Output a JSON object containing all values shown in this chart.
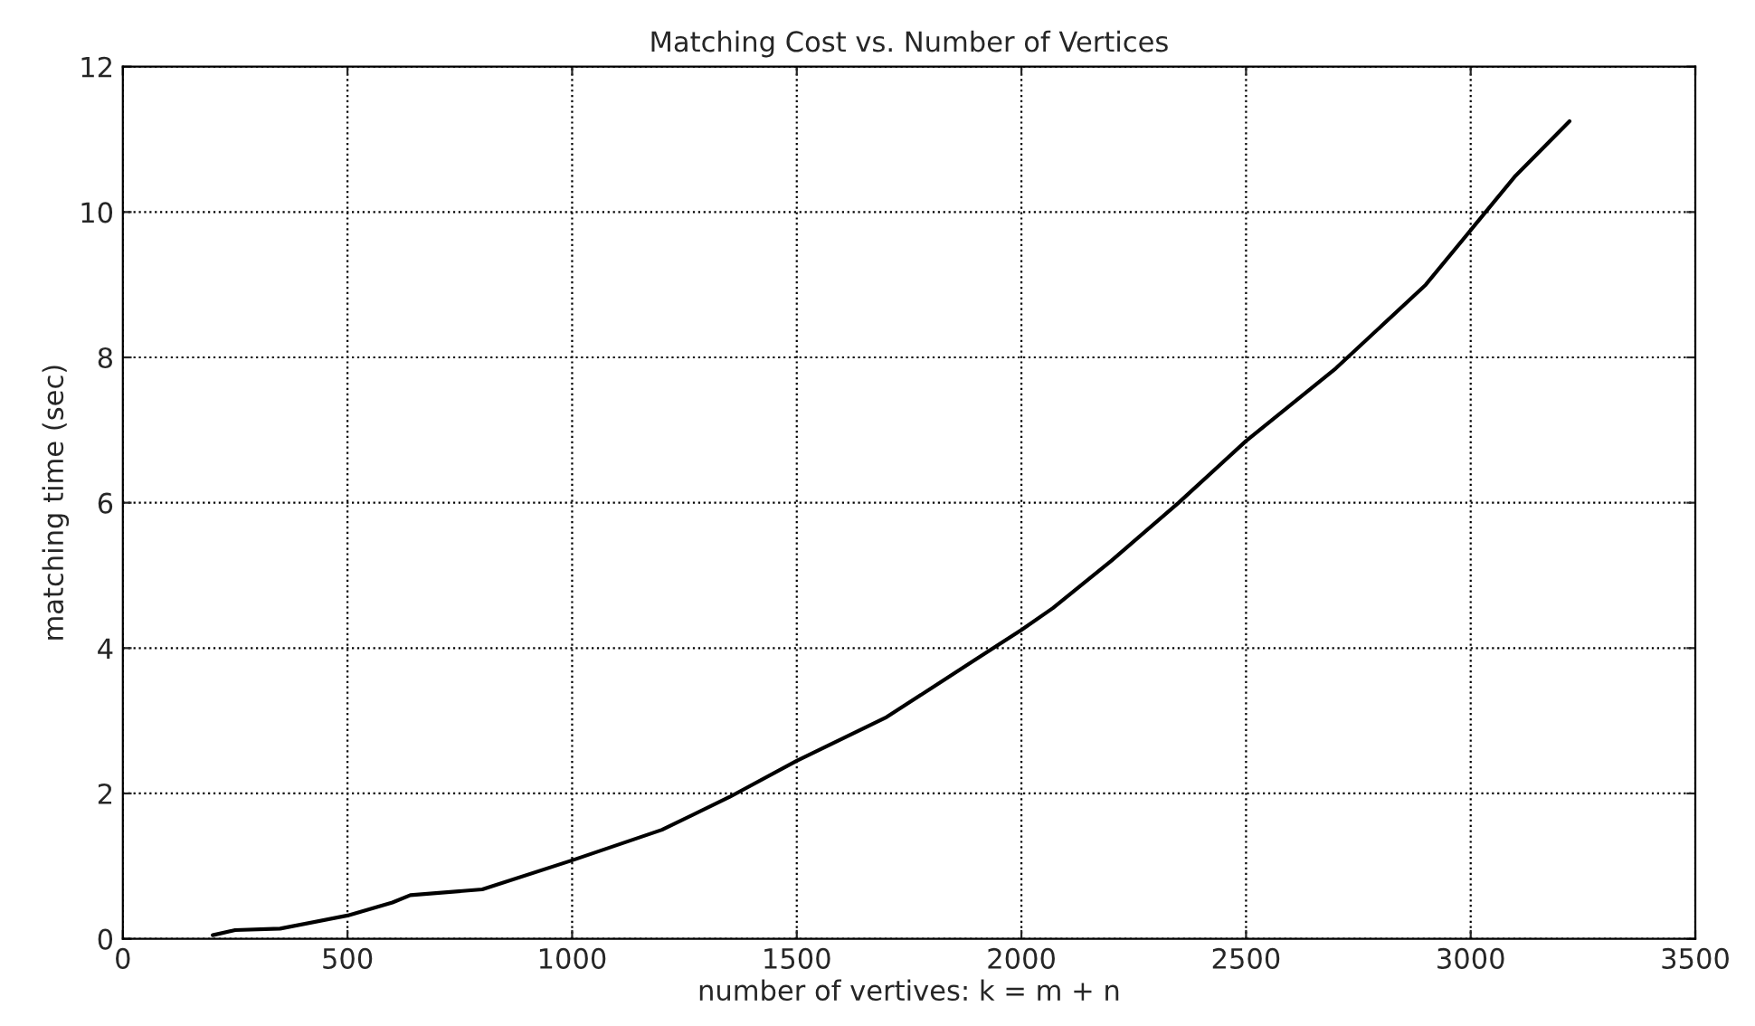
{
  "chart_data": {
    "type": "line",
    "title": "Matching Cost vs. Number of Vertices",
    "xlabel": "number of vertives: k = m + n",
    "ylabel": "matching time (sec)",
    "x": [
      200,
      250,
      350,
      500,
      600,
      640,
      800,
      1000,
      1200,
      1350,
      1500,
      1700,
      1900,
      2000,
      2070,
      2200,
      2350,
      2500,
      2700,
      2900,
      3000,
      3100,
      3220
    ],
    "series": [
      {
        "color": "#000000",
        "values": [
          0.05,
          0.12,
          0.14,
          0.32,
          0.5,
          0.6,
          0.68,
          1.08,
          1.5,
          1.95,
          2.45,
          3.05,
          3.85,
          4.25,
          4.55,
          5.2,
          6.0,
          6.85,
          7.85,
          9.0,
          9.75,
          10.5,
          11.25
        ]
      }
    ],
    "xlim": [
      0,
      3500
    ],
    "xticks": [
      0,
      500,
      1000,
      1500,
      2000,
      2500,
      3000,
      3500
    ],
    "ylim": [
      0,
      12
    ],
    "yticks": [
      0,
      2,
      4,
      6,
      8,
      10,
      12
    ],
    "grid": true,
    "marker": "none",
    "line_style": "solid"
  }
}
